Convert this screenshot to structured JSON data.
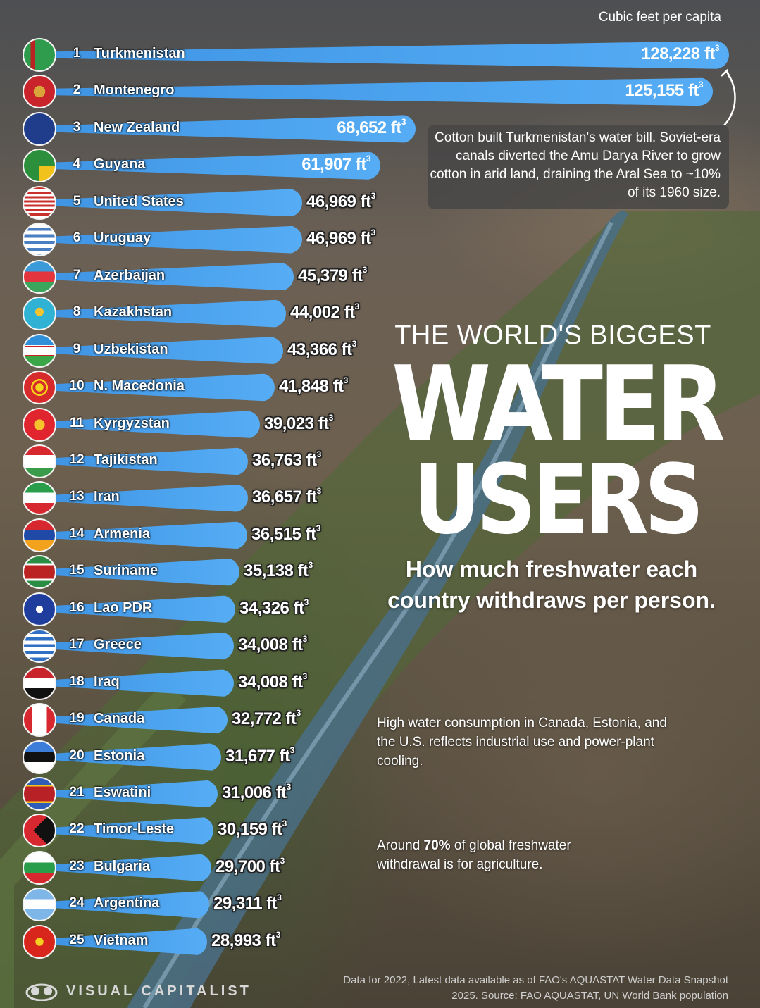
{
  "header": {
    "unit_label": "Cubic feet per capita"
  },
  "annotation_top": "Cotton built Turkmenistan's water bill. Soviet-era canals diverted the Amu Darya River to grow cotton in arid land, draining the Aral Sea to ~10% of its 1960 size.",
  "title": {
    "line1": "THE WORLD'S BIGGEST",
    "line2": "WATER",
    "line3": "USERS",
    "subtitle": "How much freshwater each country withdraws per person."
  },
  "note_industrial": "High water consumption in Canada, Estonia, and the U.S. reflects industrial use and power-plant cooling.",
  "note_agriculture": {
    "before": "Around ",
    "bold": "70%",
    "after": " of global freshwater withdrawal is for agriculture."
  },
  "footer": {
    "brand": "VISUAL CAPITALIST",
    "source": "Data for 2022, Latest data available as of FAO's AQUASTAT Water Data Snapshot 2025. Source: FAO AQUASTAT, UN World Bank population"
  },
  "colors": {
    "bar": "#4aa3ef",
    "text": "#ffffff",
    "note_bg": "#464646"
  },
  "chart_data": {
    "type": "bar",
    "orientation": "horizontal",
    "unit_suffix": "ft",
    "unit_exponent": "3",
    "categories": [
      "Turkmenistan",
      "Montenegro",
      "New Zealand",
      "Guyana",
      "United States",
      "Uruguay",
      "Azerbaijan",
      "Kazakhstan",
      "Uzbekistan",
      "N. Macedonia",
      "Kyrgyzstan",
      "Tajikistan",
      "Iran",
      "Armenia",
      "Suriname",
      "Lao PDR",
      "Greece",
      "Iraq",
      "Canada",
      "Estonia",
      "Eswatini",
      "Timor-Leste",
      "Bulgaria",
      "Argentina",
      "Vietnam"
    ],
    "ranks": [
      "1",
      "2",
      "3",
      "4",
      "5",
      "6",
      "7",
      "8",
      "9",
      "10",
      "11",
      "12",
      "13",
      "14",
      "15",
      "16",
      "17",
      "18",
      "19",
      "20",
      "21",
      "22",
      "23",
      "24",
      "25"
    ],
    "values": [
      128228,
      125155,
      68652,
      61907,
      46969,
      46969,
      45379,
      44002,
      43366,
      41848,
      39023,
      36763,
      36657,
      36515,
      35138,
      34326,
      34008,
      34008,
      32772,
      31677,
      31006,
      30159,
      29700,
      29311,
      28993
    ],
    "labels": [
      "128,228",
      "125,155",
      "68,652",
      "61,907",
      "46,969",
      "46,969",
      "45,379",
      "44,002",
      "43,366",
      "41,848",
      "39,023",
      "36,763",
      "36,657",
      "36,515",
      "35,138",
      "34,326",
      "34,008",
      "34,008",
      "32,772",
      "31,677",
      "31,006",
      "30,159",
      "29,700",
      "29,311",
      "28,993"
    ],
    "flags": [
      "turkmenistan-flag",
      "montenegro-flag",
      "new-zealand-flag",
      "guyana-flag",
      "united-states-flag",
      "uruguay-flag",
      "azerbaijan-flag",
      "kazakhstan-flag",
      "uzbekistan-flag",
      "north-macedonia-flag",
      "kyrgyzstan-flag",
      "tajikistan-flag",
      "iran-flag",
      "armenia-flag",
      "suriname-flag",
      "laos-flag",
      "greece-flag",
      "iraq-flag",
      "canada-flag",
      "estonia-flag",
      "eswatini-flag",
      "timor-leste-flag",
      "bulgaria-flag",
      "argentina-flag",
      "vietnam-flag"
    ],
    "legend": "none",
    "grid": false
  }
}
